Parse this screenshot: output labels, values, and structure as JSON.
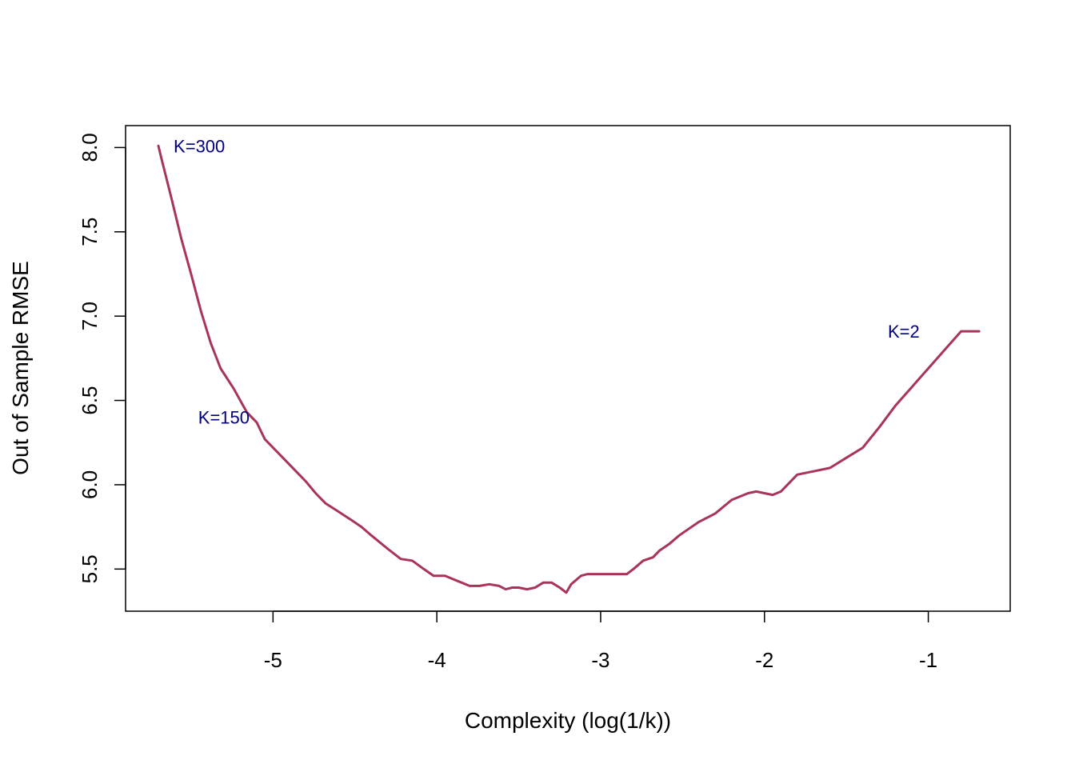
{
  "colors": {
    "line": "#A83458",
    "annotation": "#000080",
    "axis": "#000000"
  },
  "chart_data": {
    "type": "line",
    "xlabel": "Complexity (log(1/k))",
    "ylabel": "Out of Sample RMSE",
    "xlim": [
      -5.9,
      -0.5
    ],
    "ylim": [
      5.25,
      8.13
    ],
    "x_ticks": [
      -5,
      -4,
      -3,
      -2,
      -1
    ],
    "x_tick_labels": [
      "-5",
      "-4",
      "-3",
      "-2",
      "-1"
    ],
    "y_ticks": [
      5.5,
      6.0,
      6.5,
      7.0,
      7.5,
      8.0
    ],
    "y_tick_labels": [
      "5.5",
      "6.0",
      "6.5",
      "7.0",
      "7.5",
      "8.0"
    ],
    "grid": false,
    "series": [
      {
        "x": [
          -5.7,
          -5.68,
          -5.62,
          -5.56,
          -5.5,
          -5.44,
          -5.38,
          -5.32,
          -5.24,
          -5.16,
          -5.1,
          -5.05,
          -4.95,
          -4.86,
          -4.8,
          -4.74,
          -4.68,
          -4.6,
          -4.52,
          -4.46,
          -4.4,
          -4.3,
          -4.22,
          -4.15,
          -4.08,
          -4.02,
          -3.95,
          -3.9,
          -3.85,
          -3.8,
          -3.74,
          -3.68,
          -3.62,
          -3.58,
          -3.54,
          -3.5,
          -3.45,
          -3.4,
          -3.35,
          -3.3,
          -3.25,
          -3.21,
          -3.18,
          -3.12,
          -3.08,
          -3.02,
          -2.96,
          -2.9,
          -2.84,
          -2.8,
          -2.74,
          -2.68,
          -2.64,
          -2.58,
          -2.52,
          -2.46,
          -2.4,
          -2.3,
          -2.2,
          -2.1,
          -2.05,
          -2.0,
          -1.95,
          -1.9,
          -1.8,
          -1.6,
          -1.5,
          -1.4,
          -1.3,
          -1.2,
          -1.1,
          -1.0,
          -0.9,
          -0.8,
          -0.69
        ],
        "y": [
          8.01,
          7.93,
          7.7,
          7.46,
          7.25,
          7.03,
          6.84,
          6.69,
          6.57,
          6.43,
          6.37,
          6.27,
          6.17,
          6.08,
          6.02,
          5.95,
          5.89,
          5.84,
          5.79,
          5.75,
          5.7,
          5.62,
          5.56,
          5.55,
          5.5,
          5.46,
          5.46,
          5.44,
          5.42,
          5.4,
          5.4,
          5.41,
          5.4,
          5.38,
          5.39,
          5.39,
          5.38,
          5.39,
          5.42,
          5.42,
          5.39,
          5.36,
          5.41,
          5.46,
          5.47,
          5.47,
          5.47,
          5.47,
          5.47,
          5.5,
          5.55,
          5.57,
          5.61,
          5.65,
          5.7,
          5.74,
          5.78,
          5.83,
          5.91,
          5.95,
          5.96,
          5.95,
          5.94,
          5.96,
          6.06,
          6.1,
          6.16,
          6.22,
          6.34,
          6.47,
          6.58,
          6.69,
          6.8,
          6.91,
          6.91
        ]
      }
    ],
    "annotations": [
      {
        "text": "K=300",
        "x": -5.45,
        "y": 8.01
      },
      {
        "text": "K=150",
        "x": -5.3,
        "y": 6.4
      },
      {
        "text": "K=2",
        "x": -1.15,
        "y": 6.91
      }
    ]
  }
}
